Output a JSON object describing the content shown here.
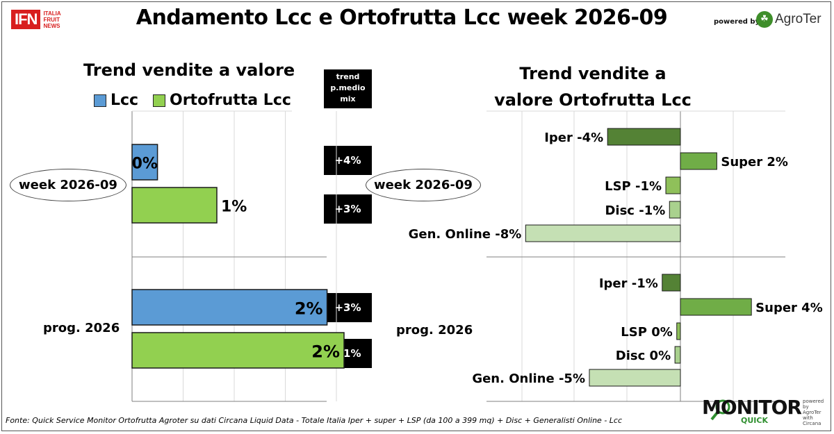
{
  "header": {
    "title": "Andamento Lcc e Ortofrutta Lcc week 2026-09",
    "ifn_logo": "IFN",
    "ifn_logo_side": [
      "ITALIA",
      "FRUIT",
      "NEWS"
    ],
    "powered_by": "powered by",
    "agroter_logo": "AgroTer"
  },
  "legend": {
    "lcc": "Lcc",
    "orto": "Ortofrutta Lcc"
  },
  "colors": {
    "lcc": "#5b9bd5",
    "orto": "#92d050",
    "iper": "#548235",
    "super": "#70ad47",
    "lsp": "#8fc05a",
    "disc": "#a9d18e",
    "online": "#c5e0b4"
  },
  "trend_header": "trend p.medio mix",
  "chart_data": [
    {
      "type": "bar",
      "title": "Trend vendite a valore",
      "categories": [
        "week 2026-09",
        "prog. 2026"
      ],
      "series": [
        {
          "name": "Lcc",
          "values": [
            0.3,
            2.3
          ],
          "labels": [
            "0%",
            "2%"
          ]
        },
        {
          "name": "Ortofrutta Lcc",
          "values": [
            1.0,
            2.5
          ],
          "labels": [
            "1%",
            "2%"
          ]
        }
      ],
      "trend_pmedio_mix": [
        [
          "+4%",
          "+3%"
        ],
        [
          "+3%",
          "+1%"
        ]
      ],
      "xlim": [
        -0.2,
        3
      ]
    },
    {
      "type": "bar",
      "title": "Trend vendite a valore Ortofrutta Lcc",
      "categories": [
        "week 2026-09",
        "prog. 2026"
      ],
      "groups": [
        {
          "name": "week 2026-09",
          "items": [
            {
              "label": "Iper -4%",
              "value": -4,
              "channel": "iper"
            },
            {
              "label": "Super 2%",
              "value": 2,
              "channel": "super"
            },
            {
              "label": "LSP -1%",
              "value": -0.8,
              "channel": "lsp"
            },
            {
              "label": "Disc -1%",
              "value": -0.6,
              "channel": "disc"
            },
            {
              "label": "Gen. Online -8%",
              "value": -8.5,
              "channel": "online"
            }
          ]
        },
        {
          "name": "prog. 2026",
          "items": [
            {
              "label": "Iper -1%",
              "value": -1.0,
              "channel": "iper"
            },
            {
              "label": "Super 4%",
              "value": 3.9,
              "channel": "super"
            },
            {
              "label": "LSP 0%",
              "value": -0.2,
              "channel": "lsp"
            },
            {
              "label": "Disc 0%",
              "value": -0.3,
              "channel": "disc"
            },
            {
              "label": "Gen. Online -5%",
              "value": -5.0,
              "channel": "online"
            }
          ]
        }
      ],
      "xlim": [
        -12,
        6
      ]
    }
  ],
  "footer": "Fonte: Quick Service Monitor Ortofrutta Agroter su dati Circana Liquid Data - Totale Italia Iper + super + LSP (da 100 a 399 mq) + Disc + Generalisti Online - Lcc",
  "monitor_logo": {
    "word": "MONITOR",
    "sub": "QUICK",
    "side": [
      "powered by",
      "AgroTer",
      "with",
      "Circana"
    ]
  }
}
